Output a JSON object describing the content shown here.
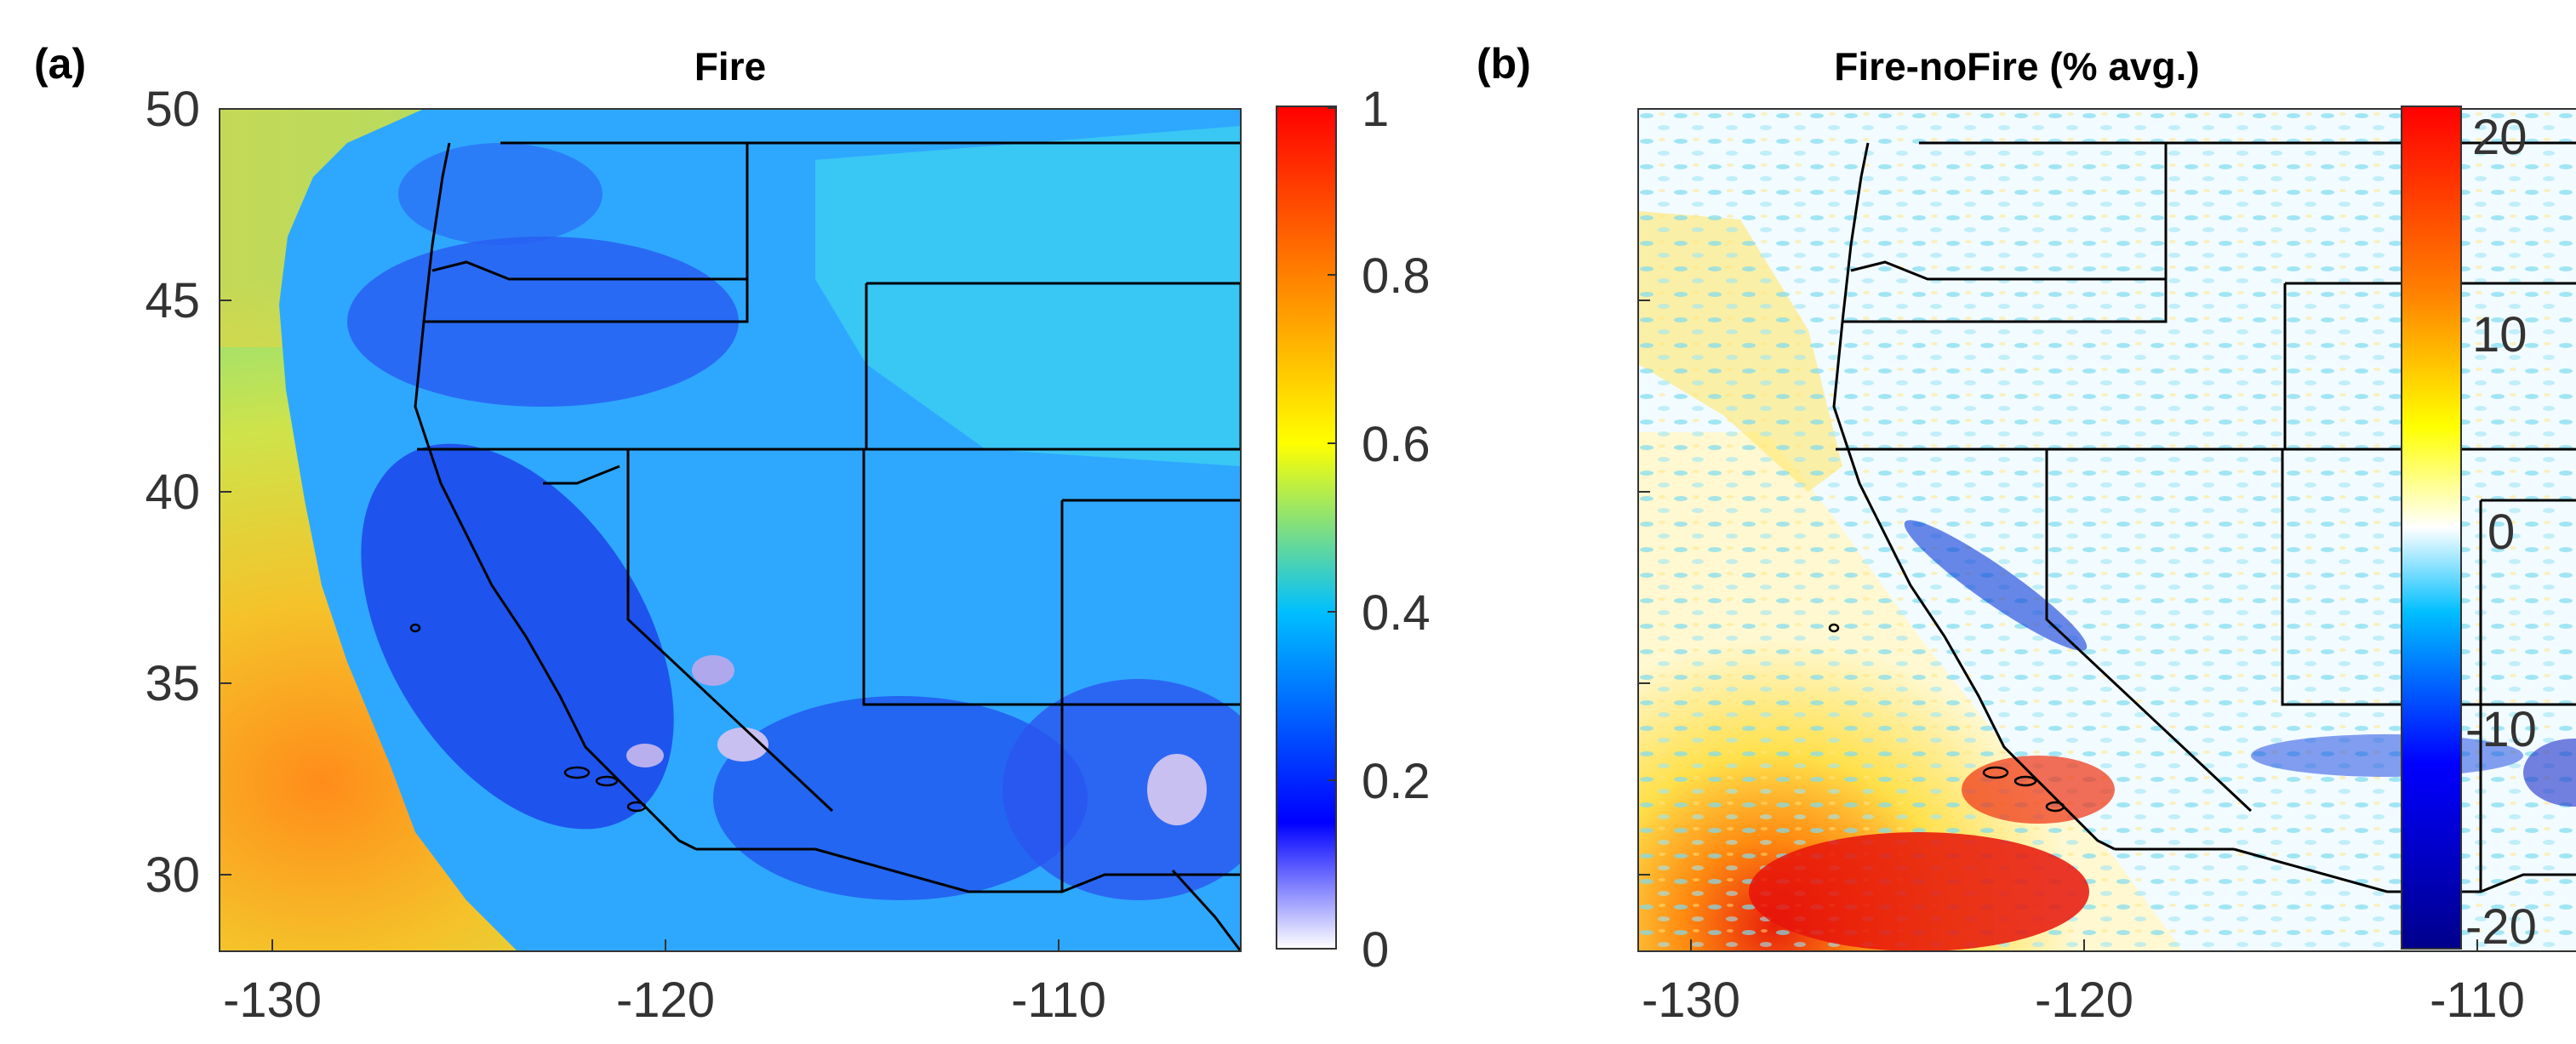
{
  "panels": [
    {
      "id": "a",
      "panel_label": "(a)",
      "title": "Fire",
      "y_ticks": [
        "50",
        "45",
        "40",
        "35",
        "30"
      ],
      "x_ticks": [
        "-130",
        "-120",
        "-110"
      ],
      "colorbar_ticks": [
        "1",
        "0.8",
        "0.6",
        "0.4",
        "0.2",
        "0"
      ],
      "colorbar_range": [
        0,
        1
      ],
      "colormap": [
        "#ffffff",
        "#0000ff",
        "#00bfff",
        "#ffff00",
        "#ff8000",
        "#ff0000"
      ]
    },
    {
      "id": "b",
      "panel_label": "(b)",
      "title": "Fire-noFire (% avg.)",
      "x_ticks": [
        "-130",
        "-120",
        "-110"
      ],
      "colorbar_ticks": [
        "20",
        "10",
        "0",
        "-10",
        "-20"
      ],
      "colorbar_range": [
        -20,
        20
      ],
      "colormap": [
        "#00008b",
        "#0000ff",
        "#00bfff",
        "#ffffff",
        "#ffff00",
        "#ff8000",
        "#ff0000"
      ]
    }
  ],
  "map_extent": {
    "lon": [
      -130,
      -104
    ],
    "lat": [
      28,
      50
    ]
  },
  "colors": {
    "border": "#000000",
    "frame": "#333333"
  }
}
